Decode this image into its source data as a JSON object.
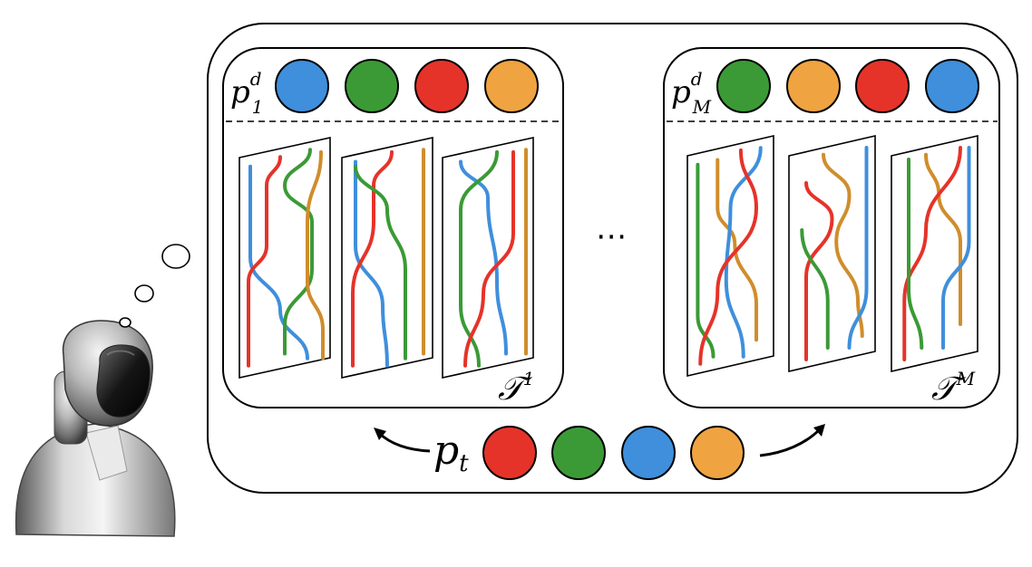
{
  "colors": {
    "blue": "#3f8fdc",
    "green": "#3b9a36",
    "red": "#e5332a",
    "orange": "#f0a341",
    "strand_orange": "#d08d2c",
    "outline": "#000000"
  },
  "groups": [
    {
      "id": "group-1",
      "label_base": "p",
      "label_sup": "d",
      "label_sub": "1",
      "label_sup_y": -10,
      "label_sub_y": 12,
      "order": [
        "blue",
        "green",
        "red",
        "orange"
      ],
      "caption_base": "𝒯",
      "caption_sup": "1"
    },
    {
      "id": "group-m",
      "label_base": "p",
      "label_sup": "d",
      "label_sub": "M",
      "label_sup_y": -10,
      "label_sub_y": 12,
      "order": [
        "green",
        "orange",
        "red",
        "blue"
      ],
      "caption_base": "𝒯",
      "caption_sup": "M"
    }
  ],
  "ellipsis": "⋯",
  "target": {
    "label_base": "p",
    "label_sub": "t",
    "order": [
      "red",
      "green",
      "blue",
      "orange"
    ]
  },
  "icons": [
    "robot-icon",
    "thought-bubble-icon",
    "left-arrow-icon",
    "right-arrow-icon"
  ]
}
